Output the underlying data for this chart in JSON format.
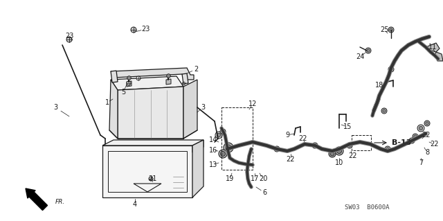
{
  "bg_color": "#ffffff",
  "diagram_code": "SW03 B0600A",
  "line_color": "#1a1a1a",
  "font_size": 7,
  "font_size_bold": 7.5
}
